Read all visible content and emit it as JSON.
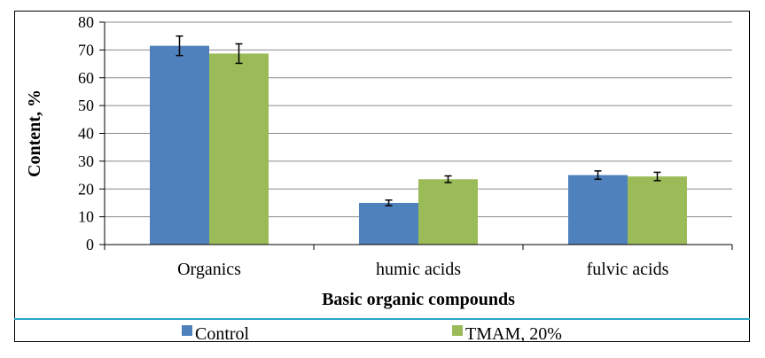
{
  "chart_data": {
    "type": "bar",
    "title": "",
    "xlabel": "Basic organic compounds",
    "ylabel": "Content, %",
    "categories": [
      "Organics",
      "humic acids",
      "fulvic acids"
    ],
    "series": [
      {
        "name": "Control",
        "color": "#4f81bd",
        "values": [
          71.5,
          15.0,
          25.0
        ],
        "errors": [
          3.5,
          1.0,
          1.5
        ]
      },
      {
        "name": "TMAM, 20%",
        "color": "#9bbb59",
        "values": [
          68.7,
          23.5,
          24.5
        ],
        "errors": [
          3.5,
          1.2,
          1.5
        ]
      }
    ],
    "ylim": [
      0,
      80
    ],
    "yticks": [
      0,
      10,
      20,
      30,
      40,
      50,
      60,
      70,
      80
    ],
    "grid": true,
    "legend_position": "bottom"
  }
}
